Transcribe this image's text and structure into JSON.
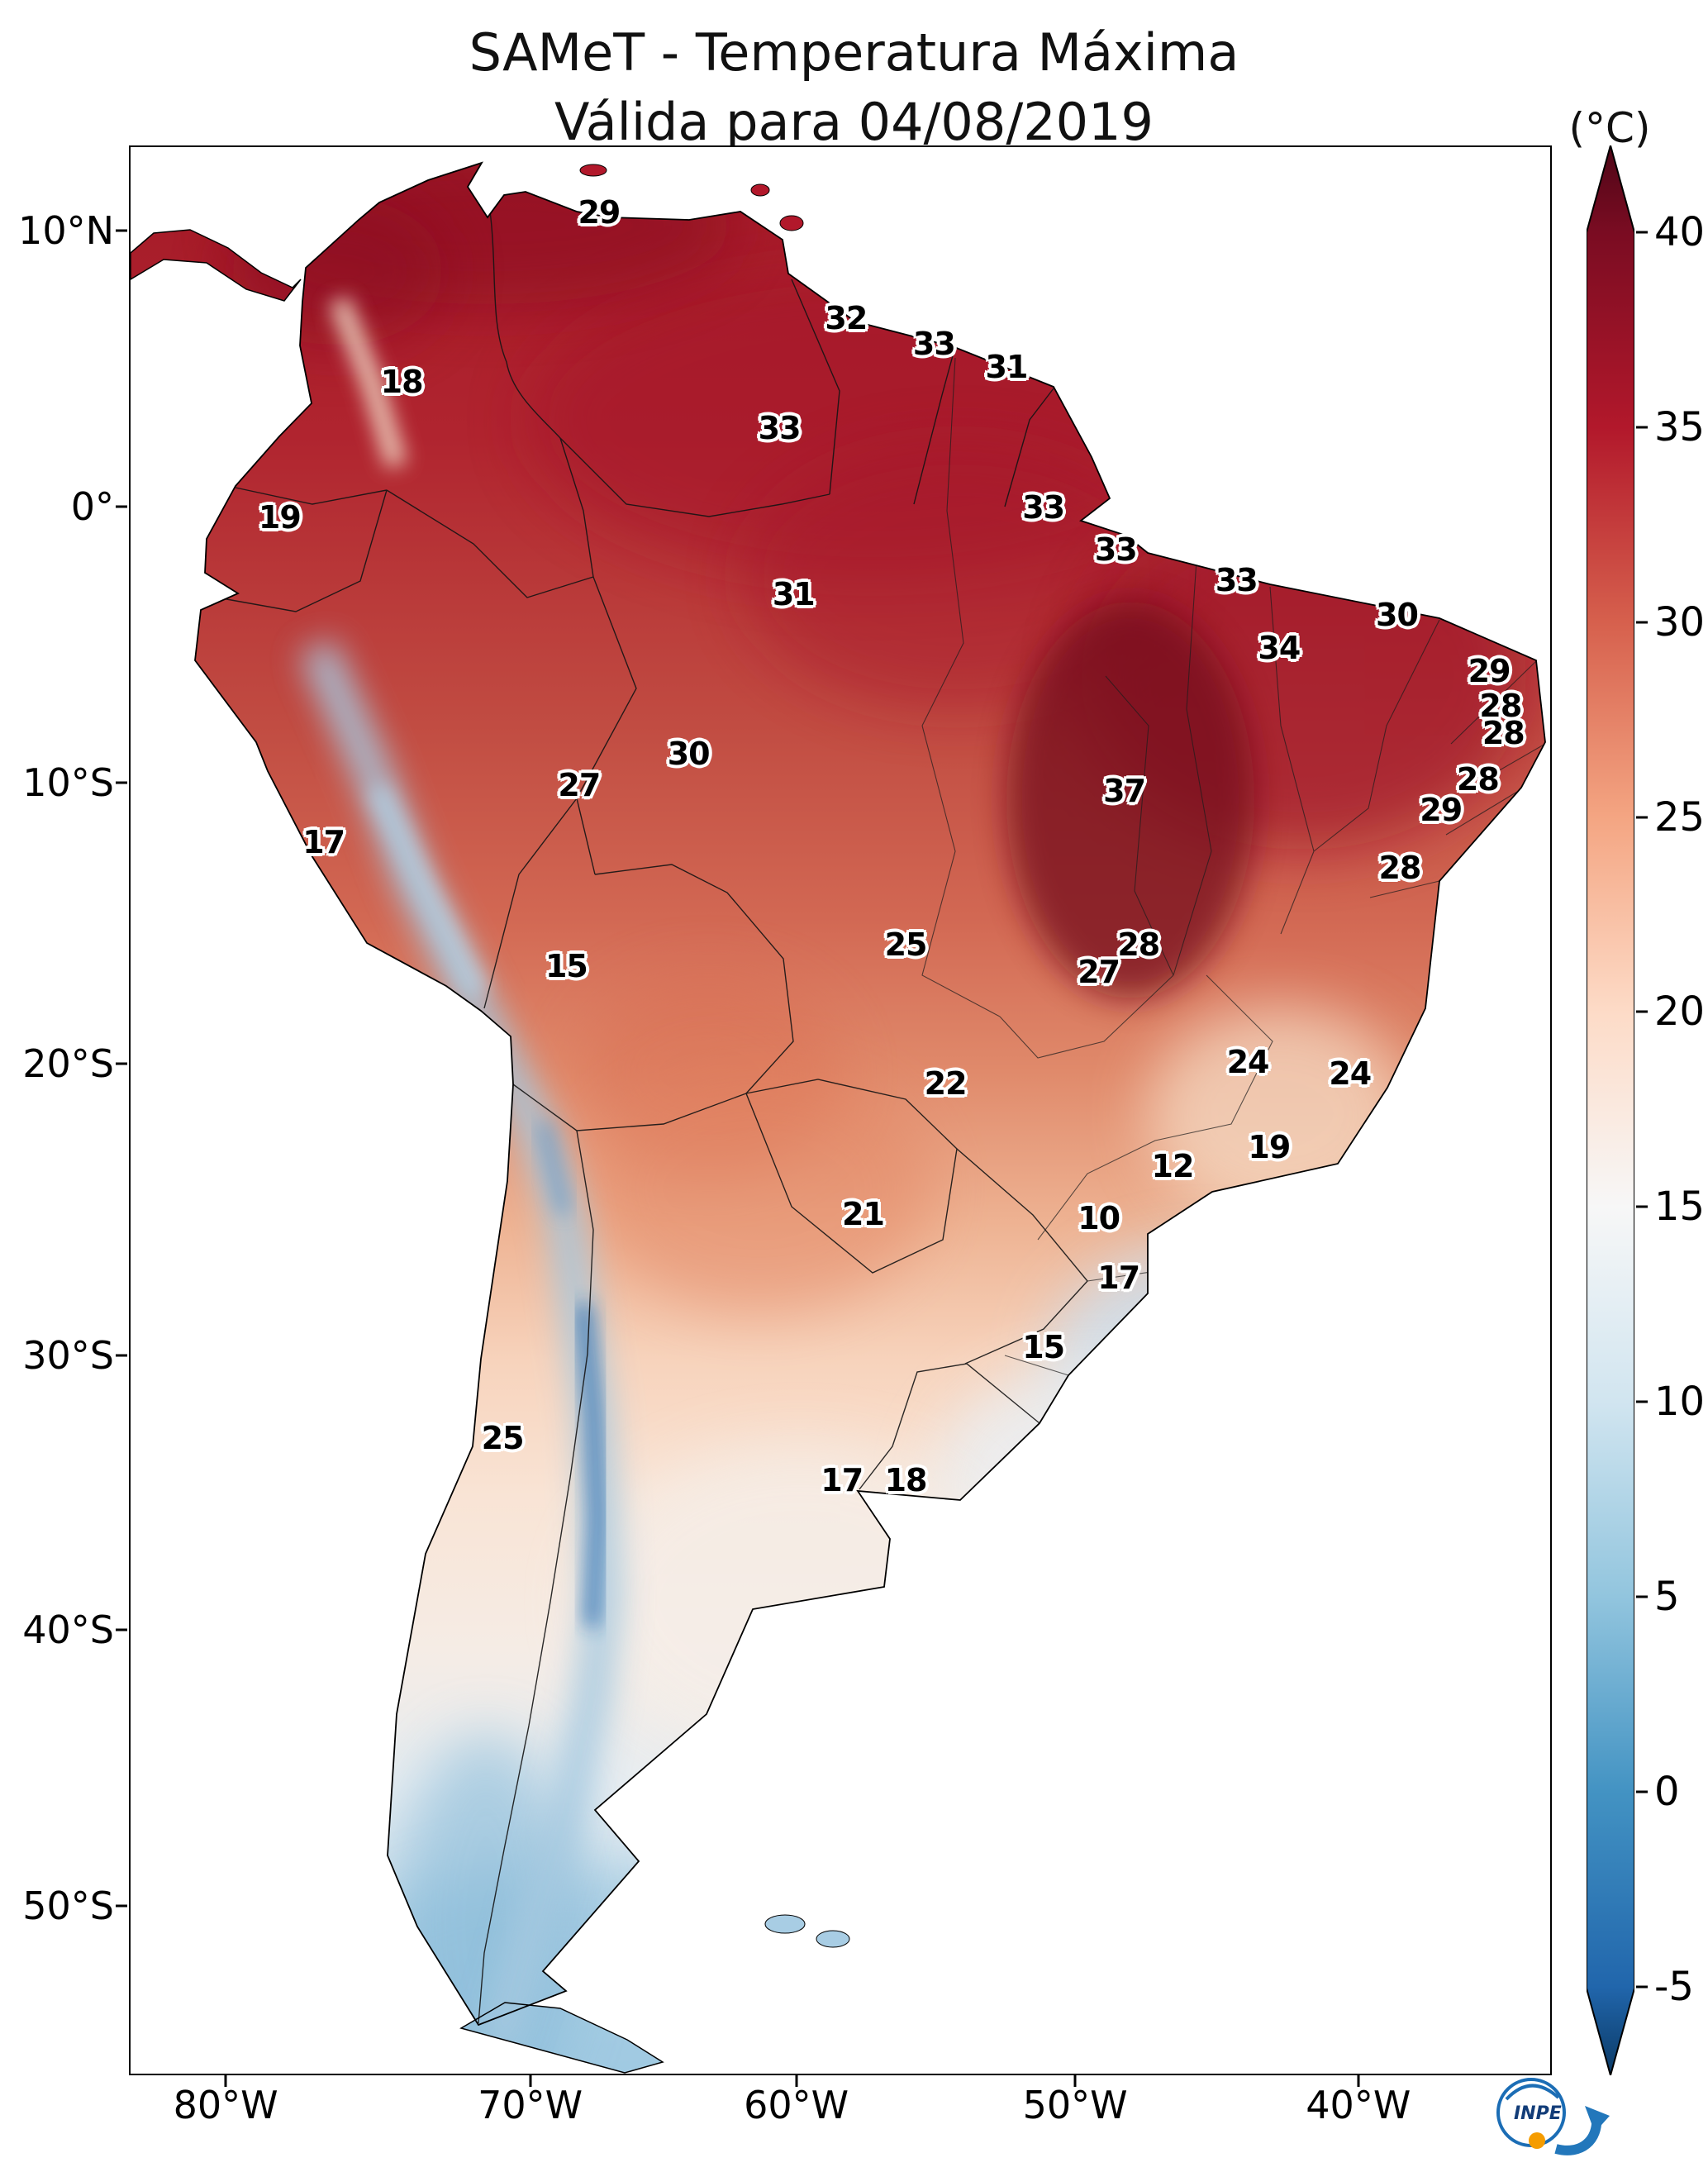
{
  "title": {
    "line1": "SAMeT - Temperatura Máxima",
    "line2": "Válida para 04/08/2019"
  },
  "colorbar": {
    "unit_label": "(°C)",
    "ticks": [
      {
        "label": "40",
        "pct": 4.5
      },
      {
        "label": "35",
        "pct": 14.6
      },
      {
        "label": "30",
        "pct": 24.7
      },
      {
        "label": "25",
        "pct": 34.8
      },
      {
        "label": "20",
        "pct": 44.9
      },
      {
        "label": "15",
        "pct": 55.0
      },
      {
        "label": "10",
        "pct": 65.1
      },
      {
        "label": "5",
        "pct": 75.2
      },
      {
        "label": "0",
        "pct": 85.3
      },
      {
        "label": "-5",
        "pct": 95.4
      }
    ],
    "gradient": [
      {
        "pct": 0,
        "color": "#4f0617"
      },
      {
        "pct": 4.5,
        "color": "#7a0c22"
      },
      {
        "pct": 14.6,
        "color": "#b2182b"
      },
      {
        "pct": 24.7,
        "color": "#d6604d"
      },
      {
        "pct": 34.8,
        "color": "#f4a582"
      },
      {
        "pct": 44.9,
        "color": "#fddbc7"
      },
      {
        "pct": 55,
        "color": "#f7f7f7"
      },
      {
        "pct": 65.1,
        "color": "#d1e5f0"
      },
      {
        "pct": 75.2,
        "color": "#92c5de"
      },
      {
        "pct": 85.3,
        "color": "#4393c3"
      },
      {
        "pct": 95.4,
        "color": "#2166ac"
      },
      {
        "pct": 100,
        "color": "#0b3a66"
      }
    ]
  },
  "axes": {
    "lat": [
      {
        "label": "10°N",
        "pct": 4.4
      },
      {
        "label": "0°",
        "pct": 18.7
      },
      {
        "label": "10°S",
        "pct": 33.0
      },
      {
        "label": "20°S",
        "pct": 47.6
      },
      {
        "label": "30°S",
        "pct": 62.7
      },
      {
        "label": "40°S",
        "pct": 76.9
      },
      {
        "label": "50°S",
        "pct": 91.2
      }
    ],
    "lon": [
      {
        "label": "80°W",
        "pct": 6.8
      },
      {
        "label": "70°W",
        "pct": 28.2
      },
      {
        "label": "60°W",
        "pct": 46.9
      },
      {
        "label": "50°W",
        "pct": 66.5
      },
      {
        "label": "40°W",
        "pct": 86.4
      }
    ]
  },
  "logo": {
    "text": "INPE"
  },
  "chart_data": {
    "type": "heatmap",
    "title": "SAMeT - Temperatura Máxima",
    "subtitle": "Válida para 04/08/2019",
    "unit": "°C",
    "colorbar_range": [
      -5,
      40
    ],
    "colorbar_ticks": [
      40,
      35,
      30,
      25,
      20,
      15,
      10,
      5,
      0,
      -5
    ],
    "colorbar_extend": "both",
    "legend_position": "right",
    "lat_ticks": [
      "10°N",
      "0°",
      "10°S",
      "20°S",
      "30°S",
      "40°S",
      "50°S"
    ],
    "lon_ticks": [
      "80°W",
      "70°W",
      "60°W",
      "50°W",
      "40°W"
    ],
    "station_values": [
      {
        "value": 29,
        "x": 33.0,
        "y": 3.4
      },
      {
        "value": 32,
        "x": 50.4,
        "y": 8.9
      },
      {
        "value": 33,
        "x": 56.6,
        "y": 10.2
      },
      {
        "value": 31,
        "x": 61.7,
        "y": 11.4
      },
      {
        "value": 18,
        "x": 19.1,
        "y": 12.2
      },
      {
        "value": 33,
        "x": 45.7,
        "y": 14.6
      },
      {
        "value": 33,
        "x": 64.3,
        "y": 18.7
      },
      {
        "value": 19,
        "x": 10.5,
        "y": 19.2
      },
      {
        "value": 33,
        "x": 69.4,
        "y": 20.9
      },
      {
        "value": 33,
        "x": 77.9,
        "y": 22.5
      },
      {
        "value": 31,
        "x": 46.7,
        "y": 23.2
      },
      {
        "value": 30,
        "x": 89.2,
        "y": 24.3
      },
      {
        "value": 34,
        "x": 80.9,
        "y": 26.0
      },
      {
        "value": 29,
        "x": 95.7,
        "y": 27.2
      },
      {
        "value": 28,
        "x": 96.5,
        "y": 29.0
      },
      {
        "value": 28,
        "x": 96.7,
        "y": 30.4
      },
      {
        "value": 30,
        "x": 39.3,
        "y": 31.5
      },
      {
        "value": 27,
        "x": 31.6,
        "y": 33.1
      },
      {
        "value": 37,
        "x": 70.0,
        "y": 33.4
      },
      {
        "value": 28,
        "x": 94.9,
        "y": 32.8
      },
      {
        "value": 29,
        "x": 92.3,
        "y": 34.4
      },
      {
        "value": 17,
        "x": 13.6,
        "y": 36.1
      },
      {
        "value": 28,
        "x": 89.4,
        "y": 37.4
      },
      {
        "value": 25,
        "x": 54.6,
        "y": 41.4
      },
      {
        "value": 28,
        "x": 71.0,
        "y": 41.4
      },
      {
        "value": 27,
        "x": 68.2,
        "y": 42.8
      },
      {
        "value": 15,
        "x": 30.7,
        "y": 42.5
      },
      {
        "value": 24,
        "x": 78.7,
        "y": 47.5
      },
      {
        "value": 24,
        "x": 85.9,
        "y": 48.1
      },
      {
        "value": 22,
        "x": 57.4,
        "y": 48.6
      },
      {
        "value": 19,
        "x": 80.2,
        "y": 51.9
      },
      {
        "value": 12,
        "x": 73.4,
        "y": 52.9
      },
      {
        "value": 21,
        "x": 51.6,
        "y": 55.4
      },
      {
        "value": 10,
        "x": 68.2,
        "y": 55.6
      },
      {
        "value": 17,
        "x": 69.6,
        "y": 58.7
      },
      {
        "value": 15,
        "x": 64.3,
        "y": 62.3
      },
      {
        "value": 25,
        "x": 26.2,
        "y": 67.0
      },
      {
        "value": 17,
        "x": 50.1,
        "y": 69.2
      },
      {
        "value": 18,
        "x": 54.6,
        "y": 69.2
      }
    ]
  }
}
